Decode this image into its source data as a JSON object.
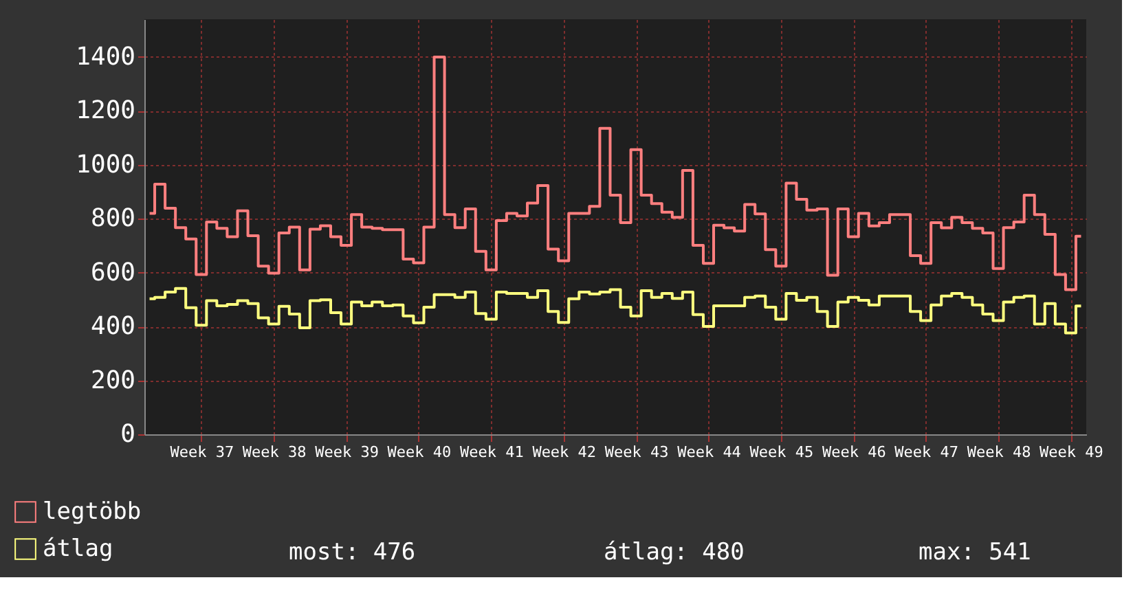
{
  "chart_data": {
    "type": "step",
    "categories": [
      null,
      null,
      null,
      null,
      null,
      "Week 37",
      null,
      null,
      null,
      null,
      null,
      null,
      "Week 38",
      null,
      null,
      null,
      null,
      null,
      null,
      "Week 39",
      null,
      null,
      null,
      null,
      null,
      null,
      "Week 40",
      null,
      null,
      null,
      null,
      null,
      null,
      "Week 41",
      null,
      null,
      null,
      null,
      null,
      null,
      "Week 42",
      null,
      null,
      null,
      null,
      null,
      null,
      "Week 43",
      null,
      null,
      null,
      null,
      null,
      null,
      "Week 44",
      null,
      null,
      null,
      null,
      null,
      null,
      "Week 45",
      null,
      null,
      null,
      null,
      null,
      null,
      "Week 46",
      null,
      null,
      null,
      null,
      null,
      null,
      "Week 47",
      null,
      null,
      null,
      null,
      null,
      null,
      "Week 48",
      null,
      null,
      null,
      null,
      null,
      null,
      "Week 49",
      null
    ],
    "series": [
      {
        "name": "legtöbb",
        "color": "#ff7f7f",
        "values": [
          820,
          928,
          839,
          767,
          725,
          593,
          788,
          764,
          733,
          829,
          737,
          624,
          598,
          747,
          769,
          610,
          761,
          774,
          733,
          701,
          815,
          769,
          764,
          759,
          759,
          650,
          636,
          769,
          1400,
          815,
          767,
          836,
          679,
          610,
          793,
          820,
          810,
          858,
          923,
          687,
          644,
          820,
          820,
          846,
          1135,
          887,
          785,
          1056,
          887,
          856,
          824,
          805,
          979,
          701,
          634,
          776,
          766,
          754,
          853,
          818,
          685,
          624,
          932,
          872,
          832,
          836,
          590,
          836,
          733,
          820,
          773,
          785,
          815,
          815,
          663,
          634,
          785,
          766,
          805,
          785,
          764,
          747,
          615,
          767,
          788,
          887,
          815,
          742,
          593,
          537,
          735
        ]
      },
      {
        "name": "átlag",
        "color": "#ffff7f",
        "values": [
          503,
          508,
          528,
          541,
          470,
          405,
          496,
          477,
          482,
          496,
          485,
          432,
          409,
          475,
          446,
          395,
          496,
          499,
          451,
          409,
          491,
          477,
          491,
          477,
          480,
          439,
          414,
          472,
          518,
          518,
          508,
          528,
          448,
          427,
          528,
          523,
          523,
          508,
          533,
          456,
          415,
          503,
          528,
          521,
          528,
          537,
          472,
          439,
          533,
          508,
          523,
          504,
          528,
          444,
          400,
          477,
          477,
          477,
          508,
          513,
          472,
          427,
          523,
          497,
          508,
          456,
          400,
          491,
          508,
          497,
          480,
          513,
          513,
          513,
          456,
          422,
          480,
          513,
          523,
          508,
          480,
          446,
          422,
          491,
          508,
          513,
          409,
          485,
          409,
          376,
          476
        ]
      }
    ],
    "ylim": [
      0,
      1540
    ],
    "yticks": [
      0,
      200,
      400,
      600,
      800,
      1000,
      1200,
      1400
    ],
    "grid": true,
    "legend": "bottom left",
    "annotations": [
      "most: 476",
      "átlag: 480",
      "max: 541"
    ]
  }
}
